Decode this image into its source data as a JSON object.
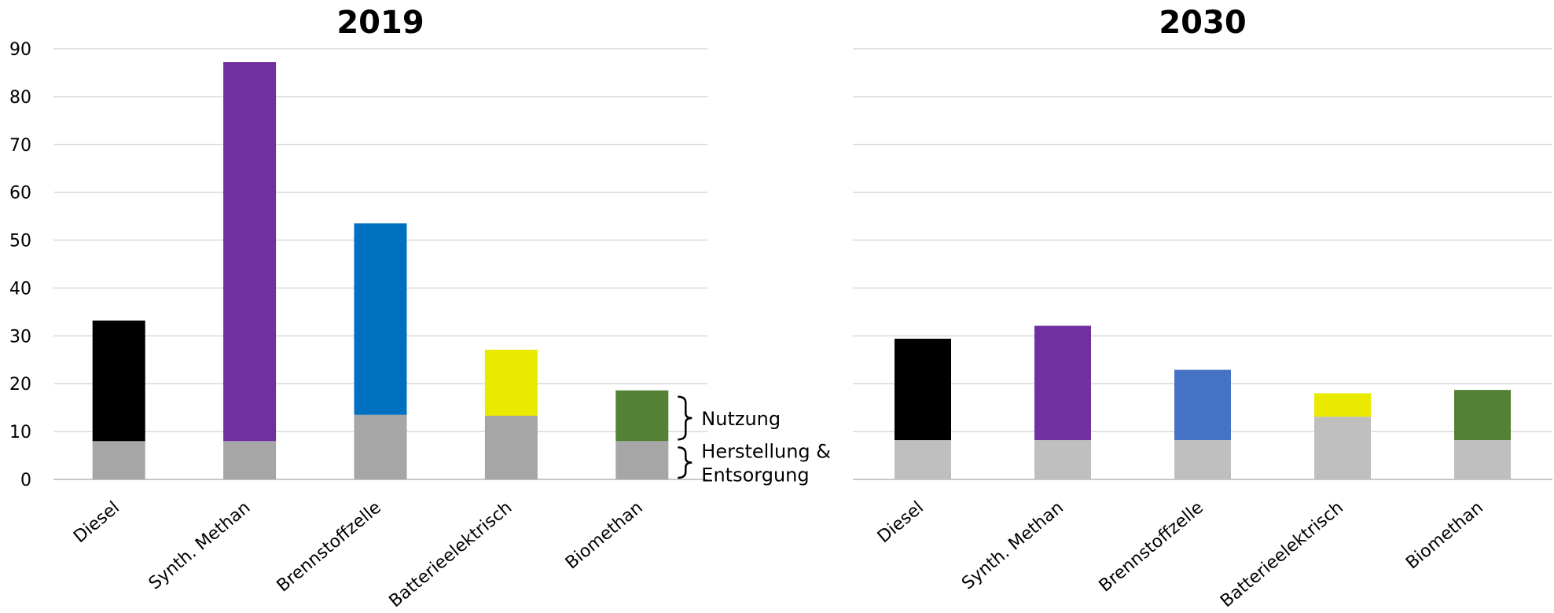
{
  "chart_data": [
    {
      "type": "bar",
      "stacked": true,
      "title": "2019",
      "categories": [
        "Diesel",
        "Synth. Methan",
        "Brennstoffzelle",
        "Batterieelektrisch",
        "Biomethan"
      ],
      "series": [
        {
          "name": "Herstellung & Entsorgung",
          "values": [
            8,
            8,
            13.5,
            13.3,
            8
          ],
          "color": "#a6a6a6"
        },
        {
          "name": "Nutzung",
          "values": [
            25.2,
            79.2,
            40,
            13.8,
            10.6
          ],
          "colors": [
            "#000000",
            "#7030a0",
            "#0070c0",
            "#eaea00",
            "#538135"
          ]
        }
      ],
      "ylim": [
        0,
        90
      ],
      "yticks": [
        0,
        10,
        20,
        30,
        40,
        50,
        60,
        70,
        80,
        90
      ],
      "grid": true,
      "annotations": [
        {
          "text": "Nutzung",
          "target_series": "Nutzung"
        },
        {
          "text_lines": [
            "Herstellung &",
            "Entsorgung"
          ],
          "target_series": "Herstellung & Entsorgung"
        }
      ]
    },
    {
      "type": "bar",
      "stacked": true,
      "title": "2030",
      "categories": [
        "Diesel",
        "Synth. Methan",
        "Brennstoffzelle",
        "Batterieelektrisch",
        "Biomethan"
      ],
      "series": [
        {
          "name": "Herstellung & Entsorgung",
          "values": [
            8.2,
            8.2,
            8.2,
            13.1,
            8.2
          ],
          "color": "#bfbfbf"
        },
        {
          "name": "Nutzung",
          "values": [
            21.2,
            23.9,
            14.7,
            4.9,
            10.5
          ],
          "colors": [
            "#000000",
            "#7030a0",
            "#4472c4",
            "#eaea00",
            "#538135"
          ]
        }
      ],
      "ylim": [
        0,
        90
      ],
      "yticks": [
        0,
        10,
        20,
        30,
        40,
        50,
        60,
        70,
        80,
        90
      ],
      "show_yticks": false,
      "grid": true
    }
  ]
}
